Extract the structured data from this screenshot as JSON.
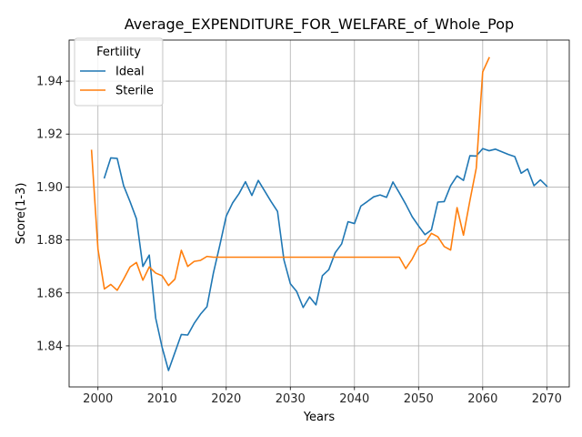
{
  "chart_data": {
    "type": "line",
    "title": "Average_EXPENDITURE_FOR_WELFARE_of_Whole_Pop",
    "xlabel": "Years",
    "ylabel": "Score(1-3)",
    "xlim": [
      1995.5,
      2073.5
    ],
    "ylim": [
      1.8245,
      1.9555
    ],
    "xticks": [
      2000,
      2010,
      2020,
      2030,
      2040,
      2050,
      2060,
      2070
    ],
    "yticks": [
      1.84,
      1.86,
      1.88,
      1.9,
      1.92,
      1.94
    ],
    "ytick_labels": [
      "1.84",
      "1.86",
      "1.88",
      "1.90",
      "1.92",
      "1.94"
    ],
    "grid": true,
    "legend": {
      "title": "Fertility",
      "position": "top-left"
    },
    "series": [
      {
        "name": "Ideal",
        "color": "#1f77b4",
        "x": [
          2001,
          2002,
          2003,
          2004,
          2005,
          2006,
          2007,
          2008,
          2009,
          2010,
          2011,
          2012,
          2013,
          2014,
          2015,
          2016,
          2017,
          2018,
          2019,
          2020,
          2021,
          2022,
          2023,
          2024,
          2025,
          2026,
          2027,
          2028,
          2029,
          2030,
          2031,
          2032,
          2033,
          2034,
          2035,
          2036,
          2037,
          2038,
          2039,
          2040,
          2041,
          2042,
          2043,
          2044,
          2045,
          2046,
          2047,
          2048,
          2049,
          2050,
          2051,
          2052,
          2053,
          2054,
          2055,
          2056,
          2057,
          2058,
          2059,
          2060,
          2061,
          2062,
          2063,
          2064,
          2065,
          2066,
          2067,
          2068,
          2069,
          2070
        ],
        "y": [
          1.9035,
          1.911,
          1.9108,
          1.9005,
          1.8945,
          1.888,
          1.87,
          1.8743,
          1.8505,
          1.8395,
          1.8307,
          1.8375,
          1.8443,
          1.8441,
          1.8485,
          1.852,
          1.8548,
          1.8675,
          1.878,
          1.889,
          1.894,
          1.8975,
          1.902,
          1.8968,
          1.9025,
          1.8985,
          1.8945,
          1.8908,
          1.8725,
          1.8635,
          1.8605,
          1.8545,
          1.8585,
          1.8555,
          1.8665,
          1.8688,
          1.8752,
          1.8785,
          1.8869,
          1.8862,
          1.8928,
          1.8945,
          1.8963,
          1.897,
          1.8961,
          1.9019,
          1.8978,
          1.8935,
          1.8888,
          1.8853,
          1.882,
          1.8838,
          1.8943,
          1.8945,
          1.9005,
          1.9042,
          1.9025,
          1.9118,
          1.9117,
          1.9145,
          1.9137,
          1.9143,
          1.9133,
          1.9123,
          1.9115,
          1.9052,
          1.9068,
          1.9005,
          1.9027,
          1.9003
        ]
      },
      {
        "name": "Sterile",
        "color": "#ff7f0e",
        "x": [
          1999,
          2000,
          2001,
          2002,
          2003,
          2004,
          2005,
          2006,
          2007,
          2008,
          2009,
          2010,
          2011,
          2012,
          2013,
          2014,
          2015,
          2016,
          2017,
          2018,
          2019,
          2020,
          2021,
          2022,
          2023,
          2024,
          2025,
          2026,
          2027,
          2028,
          2029,
          2030,
          2031,
          2032,
          2033,
          2034,
          2035,
          2036,
          2037,
          2038,
          2039,
          2040,
          2041,
          2042,
          2043,
          2044,
          2045,
          2046,
          2047,
          2048,
          2049,
          2050,
          2051,
          2052,
          2053,
          2054,
          2055,
          2056,
          2057,
          2058,
          2059,
          2060,
          2061
        ],
        "y": [
          1.9138,
          1.8765,
          1.8615,
          1.8632,
          1.861,
          1.8652,
          1.8698,
          1.8715,
          1.8648,
          1.8698,
          1.8675,
          1.8665,
          1.8628,
          1.8652,
          1.8761,
          1.87,
          1.8719,
          1.8723,
          1.8738,
          1.8735,
          1.8735,
          1.8735,
          1.8735,
          1.8735,
          1.8735,
          1.8735,
          1.8735,
          1.8735,
          1.8735,
          1.8735,
          1.8735,
          1.8735,
          1.8735,
          1.8735,
          1.8735,
          1.8735,
          1.8735,
          1.8735,
          1.8735,
          1.8735,
          1.8735,
          1.8735,
          1.8735,
          1.8735,
          1.8735,
          1.8735,
          1.8735,
          1.8735,
          1.8735,
          1.8692,
          1.8728,
          1.8775,
          1.8788,
          1.8825,
          1.8812,
          1.8775,
          1.8762,
          1.8922,
          1.8818,
          1.8948,
          1.9072,
          1.9435,
          1.9488
        ]
      }
    ]
  }
}
